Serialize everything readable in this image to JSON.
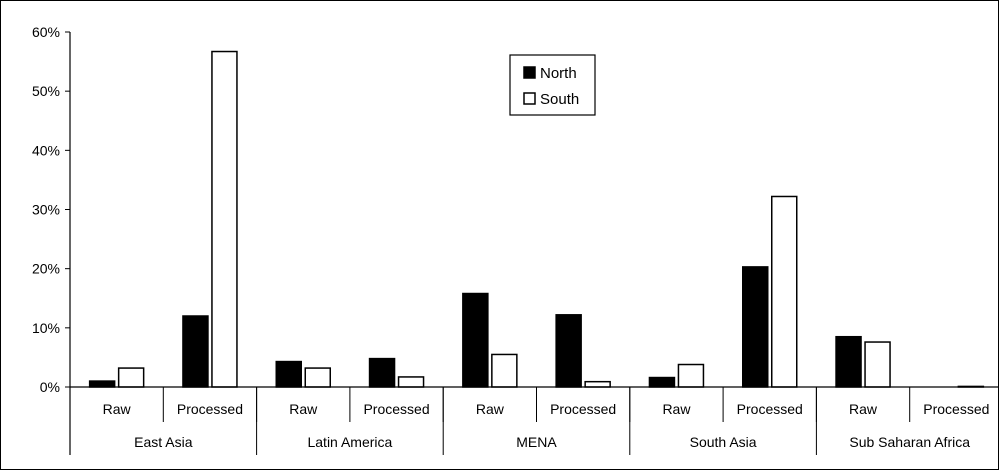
{
  "chart_data": {
    "type": "bar",
    "y_ticks": [
      "0%",
      "10%",
      "20%",
      "30%",
      "40%",
      "50%",
      "60%"
    ],
    "ylim": [
      0,
      60
    ],
    "y_unit": "%",
    "groups": [
      {
        "name": "East Asia",
        "categories": [
          "Raw",
          "Processed"
        ]
      },
      {
        "name": "Latin America",
        "categories": [
          "Raw",
          "Processed"
        ]
      },
      {
        "name": "MENA",
        "categories": [
          "Raw",
          "Processed"
        ]
      },
      {
        "name": "South Asia",
        "categories": [
          "Raw",
          "Processed"
        ]
      },
      {
        "name": "Sub Saharan Africa",
        "categories": [
          "Raw",
          "Processed"
        ]
      }
    ],
    "series": [
      {
        "name": "North",
        "color": "#000000",
        "values": [
          1.0,
          12.0,
          4.3,
          4.8,
          15.8,
          12.2,
          1.6,
          20.3,
          8.5,
          0.0
        ]
      },
      {
        "name": "South",
        "color": "#ffffff",
        "values": [
          3.2,
          56.7,
          3.2,
          1.7,
          5.5,
          0.9,
          3.8,
          32.2,
          7.6,
          0.1
        ]
      }
    ],
    "legend": {
      "placement": "top-center",
      "items": [
        "North",
        "South"
      ]
    },
    "grid": false
  }
}
